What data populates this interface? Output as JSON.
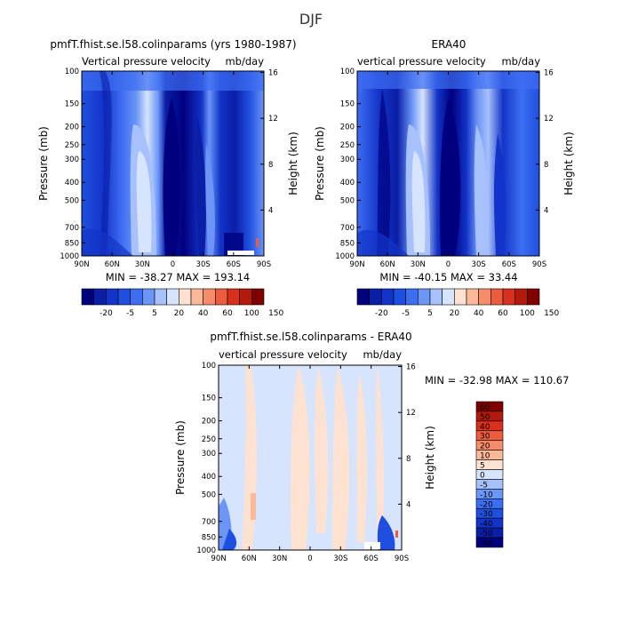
{
  "figure": {
    "title": "DJF"
  },
  "colors": {
    "panel_levels": [
      "#00007f",
      "#0a1ea6",
      "#1334c8",
      "#1f4fe0",
      "#3d6ef2",
      "#6b95f7",
      "#a6c1fb",
      "#d6e4fd",
      "#fde2d2",
      "#fbb99a",
      "#f58c6a",
      "#ec5c3e",
      "#d8301c",
      "#b31a0c",
      "#800000"
    ],
    "diff_levels": [
      "#00007f",
      "#0a1ea6",
      "#1334c8",
      "#1f4fe0",
      "#3d6ef2",
      "#6b95f7",
      "#a6c1fb",
      "#d6e4fd",
      "#fde2d2",
      "#fbb99a",
      "#f58c6a",
      "#ec5c3e",
      "#d8301c",
      "#b31a0c",
      "#800000"
    ]
  },
  "chart_data": [
    {
      "type": "heatmap",
      "title": "pmfT.fhist.se.l58.colinparams (yrs 1980-1987)",
      "subtitle_left": "Vertical pressure velocity",
      "subtitle_right": "mb/day",
      "ylabel": "Pressure (mb)",
      "ylabel_right": "Height (km)",
      "x_ticks": [
        "90N",
        "60N",
        "30N",
        "0",
        "30S",
        "60S",
        "90S"
      ],
      "y_ticks": [
        "100",
        "150",
        "200",
        "250",
        "300",
        "400",
        "500",
        "700",
        "850",
        "1000"
      ],
      "y_tick_values": [
        100,
        150,
        200,
        250,
        300,
        400,
        500,
        700,
        850,
        1000
      ],
      "right_ticks": [
        "16",
        "12",
        "8",
        "4"
      ],
      "right_tick_values": [
        16,
        12,
        8,
        4
      ],
      "stats": "MIN = -38.27   MAX = 193.14",
      "colorbar_labels": [
        "-20",
        "-5",
        "5",
        "20",
        "40",
        "60",
        "100",
        "150"
      ],
      "colorbar_levels": [
        -40,
        -30,
        -20,
        -10,
        -5,
        0,
        5,
        10,
        20,
        30,
        40,
        60,
        80,
        100,
        150
      ]
    },
    {
      "type": "heatmap",
      "title": "ERA40",
      "subtitle_left": "vertical pressure velocity",
      "subtitle_right": "mb/day",
      "ylabel": "Pressure (mb)",
      "ylabel_right": "Height (km)",
      "x_ticks": [
        "90N",
        "60N",
        "30N",
        "0",
        "30S",
        "60S",
        "90S"
      ],
      "y_ticks": [
        "100",
        "150",
        "200",
        "250",
        "300",
        "400",
        "500",
        "700",
        "850",
        "1000"
      ],
      "y_tick_values": [
        100,
        150,
        200,
        250,
        300,
        400,
        500,
        700,
        850,
        1000
      ],
      "right_ticks": [
        "16",
        "12",
        "8",
        "4"
      ],
      "right_tick_values": [
        16,
        12,
        8,
        4
      ],
      "stats": "MIN = -40.15   MAX =  33.44",
      "colorbar_labels": [
        "-20",
        "-5",
        "5",
        "20",
        "40",
        "60",
        "100",
        "150"
      ],
      "colorbar_levels": [
        -40,
        -30,
        -20,
        -10,
        -5,
        0,
        5,
        10,
        20,
        30,
        40,
        60,
        80,
        100,
        150
      ]
    },
    {
      "type": "heatmap",
      "title": "pmfT.fhist.se.l58.colinparams - ERA40",
      "subtitle_left": "vertical pressure velocity",
      "subtitle_right": "mb/day",
      "ylabel": "Pressure (mb)",
      "ylabel_right": "Height (km)",
      "x_ticks": [
        "90N",
        "60N",
        "30N",
        "0",
        "30S",
        "60S",
        "90S"
      ],
      "y_ticks": [
        "100",
        "150",
        "200",
        "250",
        "300",
        "400",
        "500",
        "700",
        "850",
        "1000"
      ],
      "y_tick_values": [
        100,
        150,
        200,
        250,
        300,
        400,
        500,
        700,
        850,
        1000
      ],
      "right_ticks": [
        "16",
        "12",
        "8",
        "4"
      ],
      "right_tick_values": [
        16,
        12,
        8,
        4
      ],
      "stats": "MIN = -32.98   MAX = 110.67",
      "colorbar_labels": [
        "60",
        "50",
        "40",
        "30",
        "20",
        "10",
        "5",
        "0",
        "-5",
        "-10",
        "-20",
        "-30",
        "-40",
        "-50",
        "-60"
      ]
    }
  ]
}
